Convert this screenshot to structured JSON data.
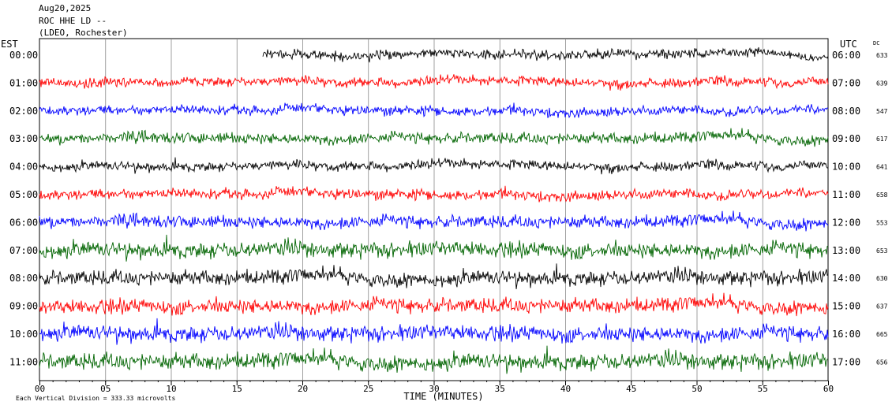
{
  "header": {
    "date": "Aug20,2025",
    "station": "ROC HHE LD --",
    "network": "(LDEO, Rochester)"
  },
  "chart_data": {
    "type": "line",
    "xlabel": "TIME (MINUTES)",
    "xlim": [
      0,
      60
    ],
    "x_ticks": [
      "00",
      "05",
      "10",
      "15",
      "20",
      "25",
      "30",
      "35",
      "40",
      "45",
      "50",
      "55",
      "60"
    ],
    "left_axis_label": "EST",
    "right_axis_label": "UTC",
    "dc_label": "DC",
    "grid": true,
    "footer_note": "Each Vertical Division =  333.33 microvolts",
    "colors": [
      "#000000",
      "#ff0000",
      "#0000ff",
      "#006400"
    ],
    "rows": [
      {
        "est": "00:00",
        "utc": "06:00",
        "dc": "633",
        "color": "#000000",
        "amp": 0.6,
        "start_minute": 17
      },
      {
        "est": "01:00",
        "utc": "07:00",
        "dc": "639",
        "color": "#ff0000",
        "amp": 0.6,
        "start_minute": 0
      },
      {
        "est": "02:00",
        "utc": "08:00",
        "dc": "547",
        "color": "#0000ff",
        "amp": 0.6,
        "start_minute": 0
      },
      {
        "est": "03:00",
        "utc": "09:00",
        "dc": "617",
        "color": "#006400",
        "amp": 0.7,
        "start_minute": 0
      },
      {
        "est": "04:00",
        "utc": "10:00",
        "dc": "641",
        "color": "#000000",
        "amp": 0.6,
        "start_minute": 0
      },
      {
        "est": "05:00",
        "utc": "11:00",
        "dc": "658",
        "color": "#ff0000",
        "amp": 0.65,
        "start_minute": 0
      },
      {
        "est": "06:00",
        "utc": "12:00",
        "dc": "553",
        "color": "#0000ff",
        "amp": 0.8,
        "start_minute": 0
      },
      {
        "est": "07:00",
        "utc": "13:00",
        "dc": "653",
        "color": "#006400",
        "amp": 1.0,
        "start_minute": 0
      },
      {
        "est": "08:00",
        "utc": "14:00",
        "dc": "630",
        "color": "#000000",
        "amp": 0.95,
        "start_minute": 0
      },
      {
        "est": "09:00",
        "utc": "15:00",
        "dc": "637",
        "color": "#ff0000",
        "amp": 0.95,
        "start_minute": 0
      },
      {
        "est": "10:00",
        "utc": "16:00",
        "dc": "665",
        "color": "#0000ff",
        "amp": 1.0,
        "start_minute": 0
      },
      {
        "est": "11:00",
        "utc": "17:00",
        "dc": "656",
        "color": "#006400",
        "amp": 1.05,
        "start_minute": 0
      }
    ]
  }
}
